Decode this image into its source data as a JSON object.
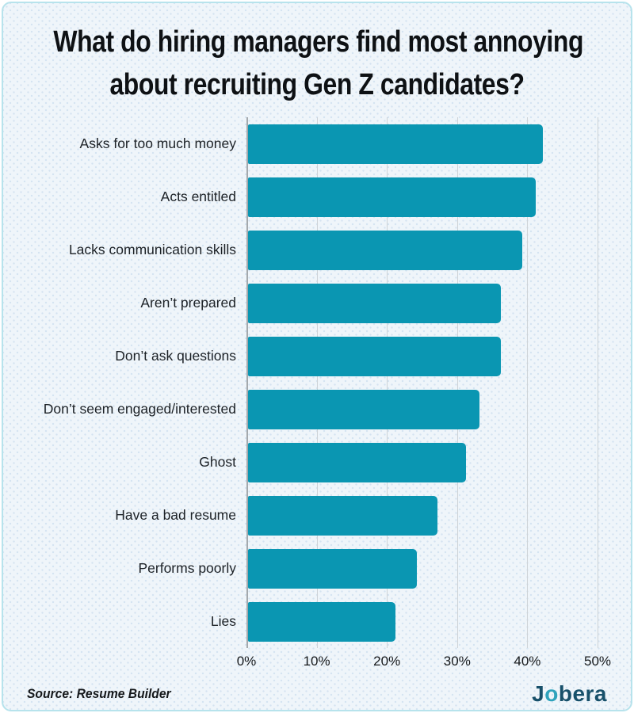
{
  "title": {
    "line1": "What do hiring managers find most annoying",
    "line2": "about recruiting Gen Z candidates?"
  },
  "chart_data": {
    "type": "bar",
    "orientation": "horizontal",
    "title": "What do hiring managers find most annoying about recruiting Gen Z candidates?",
    "categories": [
      "Asks for too much money",
      "Acts entitled",
      "Lacks communication skills",
      "Aren’t prepared",
      "Don’t ask questions",
      "Don’t seem engaged/interested",
      "Ghost",
      "Have a bad resume",
      "Performs poorly",
      "Lies"
    ],
    "values": [
      42,
      41,
      39,
      36,
      36,
      33,
      31,
      27,
      24,
      21
    ],
    "value_suffix": "%",
    "xlabel": "",
    "ylabel": "",
    "xlim": [
      0,
      50
    ],
    "x_ticks": [
      "0%",
      "10%",
      "20%",
      "30%",
      "40%",
      "50%"
    ],
    "grid": true,
    "legend": false
  },
  "footer": {
    "source": "Source: Resume Builder",
    "logo_parts": {
      "prefix": "J",
      "accent": "o",
      "suffix": "bera"
    }
  },
  "colors": {
    "bar": "#0a96b2",
    "card_background": "#eff5fa",
    "card_border": "#b7e3ec",
    "gridline": "#ced3d7",
    "axis_line": "#a4a9ad",
    "title_text": "#0e1114",
    "label_text": "#1c2126",
    "tick_text": "#15181b",
    "logo_primary": "#17506a",
    "logo_accent": "#2fa3bc"
  }
}
